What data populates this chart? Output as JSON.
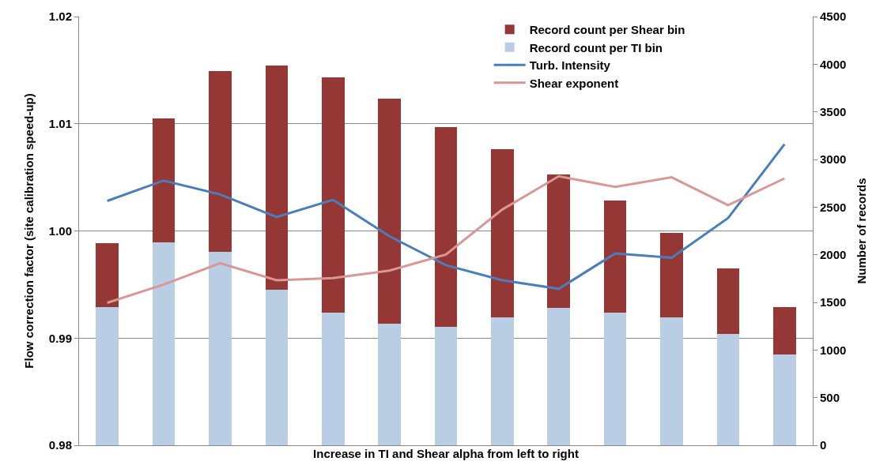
{
  "chart_data": {
    "type": "bar",
    "stacked": true,
    "xlabel": "Increase in TI and Shear alpha from left to right",
    "ylabel": "Flow correction factor (site calibration speed-up)",
    "y2label": "Number of records",
    "categories": [
      null,
      null,
      null,
      null,
      null,
      null,
      null,
      null,
      null,
      null,
      null,
      null,
      null
    ],
    "series": [
      {
        "name": "Record count per TI bin",
        "axis": "y2",
        "color": "#b9cde5",
        "values": [
          1450,
          2130,
          2030,
          1630,
          1390,
          1280,
          1240,
          1340,
          1440,
          1390,
          1340,
          1170,
          950
        ]
      },
      {
        "name": "Record count per Shear bin",
        "axis": "y2",
        "color": "#953735",
        "values": [
          670,
          1300,
          1900,
          2360,
          2470,
          2360,
          2100,
          1770,
          1400,
          1180,
          890,
          690,
          500
        ]
      },
      {
        "name": "Turb. Intensity",
        "type": "line",
        "color": "#4a7ebb",
        "values": [
          1.0028,
          1.0047,
          1.0034,
          1.0013,
          1.0029,
          0.9995,
          0.9968,
          0.9954,
          0.9946,
          0.9979,
          0.9975,
          1.0012,
          1.0081
        ]
      },
      {
        "name": "Shear exponent",
        "type": "line",
        "color": "#d99795",
        "values": [
          0.9933,
          0.995,
          0.997,
          0.9954,
          0.9956,
          0.9963,
          0.9978,
          1.002,
          1.0051,
          1.0041,
          1.005,
          1.0024,
          1.0049
        ]
      }
    ],
    "ylim": [
      0.98,
      1.02
    ],
    "yticks": [
      {
        "value": 0.98,
        "label": "0.98"
      },
      {
        "value": 0.99,
        "label": "0.99"
      },
      {
        "value": 1.0,
        "label": "1.00"
      },
      {
        "value": 1.01,
        "label": "1.01"
      },
      {
        "value": 1.02,
        "label": "1.02"
      }
    ],
    "y2lim": [
      0,
      4500
    ],
    "y2ticks": [
      0,
      500,
      1000,
      1500,
      2000,
      2500,
      3000,
      3500,
      4000,
      4500
    ],
    "grid": "y",
    "legend": "top right",
    "marker": "none",
    "line_style": "solid"
  }
}
